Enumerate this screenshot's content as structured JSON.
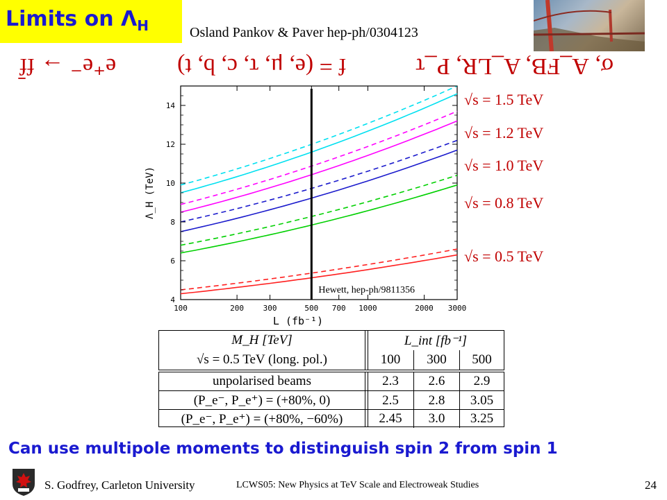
{
  "slide": {
    "title_main": "Limits on Λ",
    "title_sub": "H",
    "authors": "Osland Pankov & Paver hep-ph/0304123",
    "formulas": [
      "e⁺e⁻ → ff̄",
      "f = (e, μ, τ, c, b, t)",
      "σ, A_FB, A_LR, P_τ"
    ],
    "bottom_text": "Can use multipole moments to distinguish spin 2 from spin 1",
    "footer_left": "S. Godfrey, Carleton University",
    "footer_center": "LCWS05: New Physics at TeV Scale and Electroweak Studies",
    "page_number": "24",
    "colors": {
      "title_bg": "#ffff00",
      "title_text": "#1a1ad0",
      "formula": "#c00000",
      "accent": "#1a1ad0"
    }
  },
  "chart_data": {
    "type": "line",
    "xlabel": "L (fb⁻¹)",
    "ylabel": "Λ_H (TeV)",
    "x_scale": "log",
    "xlim": [
      100,
      3000
    ],
    "ylim": [
      4,
      15
    ],
    "x_ticks": [
      100,
      200,
      300,
      500,
      700,
      1000,
      2000,
      3000
    ],
    "y_ticks": [
      4,
      6,
      8,
      10,
      12,
      14
    ],
    "annotation": "Hewett, hep-ph/9811356",
    "vertical_line_x": 500,
    "x": [
      100,
      3000
    ],
    "series": [
      {
        "label": "√s = 1.5 TeV",
        "color": "#00e0f0",
        "solid": [
          9.5,
          14.6
        ],
        "dashed": [
          9.9,
          15.0
        ]
      },
      {
        "label": "√s = 1.2 TeV",
        "color": "#ff00ff",
        "solid": [
          8.5,
          13.2
        ],
        "dashed": [
          8.9,
          13.7
        ]
      },
      {
        "label": "√s = 1.0 TeV",
        "color": "#1a1acc",
        "solid": [
          7.5,
          11.7
        ],
        "dashed": [
          8.0,
          12.2
        ]
      },
      {
        "label": "√s = 0.8 TeV",
        "color": "#00d000",
        "solid": [
          6.4,
          9.9
        ],
        "dashed": [
          6.8,
          10.4
        ]
      },
      {
        "label": "√s = 0.5 TeV",
        "color": "#ff2020",
        "solid": [
          4.3,
          6.3
        ],
        "dashed": [
          4.5,
          6.6
        ]
      }
    ]
  },
  "table": {
    "header_left_1": "M_H [TeV]",
    "header_left_2": "√s = 0.5 TeV (long. pol.)",
    "header_right": "L_int [fb⁻¹]",
    "lumi": [
      "100",
      "300",
      "500"
    ],
    "rows": [
      {
        "label": "unpolarised beams",
        "values": [
          "2.3",
          "2.6",
          "2.9"
        ]
      },
      {
        "label": "(P_e⁻, P_e⁺) = (+80%, 0)",
        "values": [
          "2.5",
          "2.8",
          "3.05"
        ]
      },
      {
        "label": "(P_e⁻, P_e⁺) = (+80%, −60%)",
        "values": [
          "2.45",
          "3.0",
          "3.25"
        ]
      }
    ]
  }
}
